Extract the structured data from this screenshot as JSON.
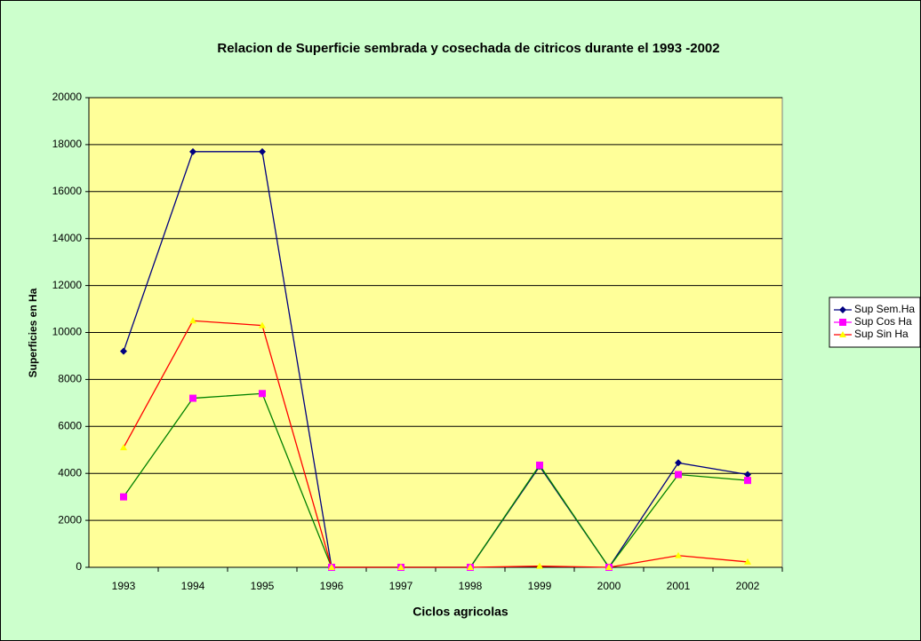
{
  "chart_data": {
    "type": "line",
    "title": "Relacion de Superficie sembrada y cosechada de citricos durante el 1993 -2002",
    "x_label": "Ciclos agricolas",
    "y_label": "Superficies en Ha",
    "categories": [
      "1993",
      "1994",
      "1995",
      "1996",
      "1997",
      "1998",
      "1999",
      "2000",
      "2001",
      "2002"
    ],
    "series": [
      {
        "name": "Sup Sem.Ha",
        "color": "#000080",
        "marker_color": "#000080",
        "marker": "diamond",
        "values": [
          9200,
          17700,
          17700,
          0,
          0,
          0,
          4300,
          0,
          4450,
          3950
        ]
      },
      {
        "name": "Sup Cos Ha",
        "color": "#008000",
        "marker_color": "#ff00ff",
        "marker": "square",
        "values": [
          3000,
          7200,
          7400,
          0,
          0,
          0,
          4350,
          0,
          3950,
          3700
        ]
      },
      {
        "name": "Sup Sin Ha",
        "color": "#ff0000",
        "marker_color": "#ffff00",
        "marker": "triangle",
        "values": [
          5100,
          10500,
          10300,
          0,
          0,
          0,
          50,
          0,
          500,
          230
        ]
      }
    ],
    "ylim": [
      0,
      20000
    ],
    "yticks": [
      0,
      2000,
      4000,
      6000,
      8000,
      10000,
      12000,
      14000,
      16000,
      18000,
      20000
    ],
    "grid": true,
    "legend": "right"
  }
}
